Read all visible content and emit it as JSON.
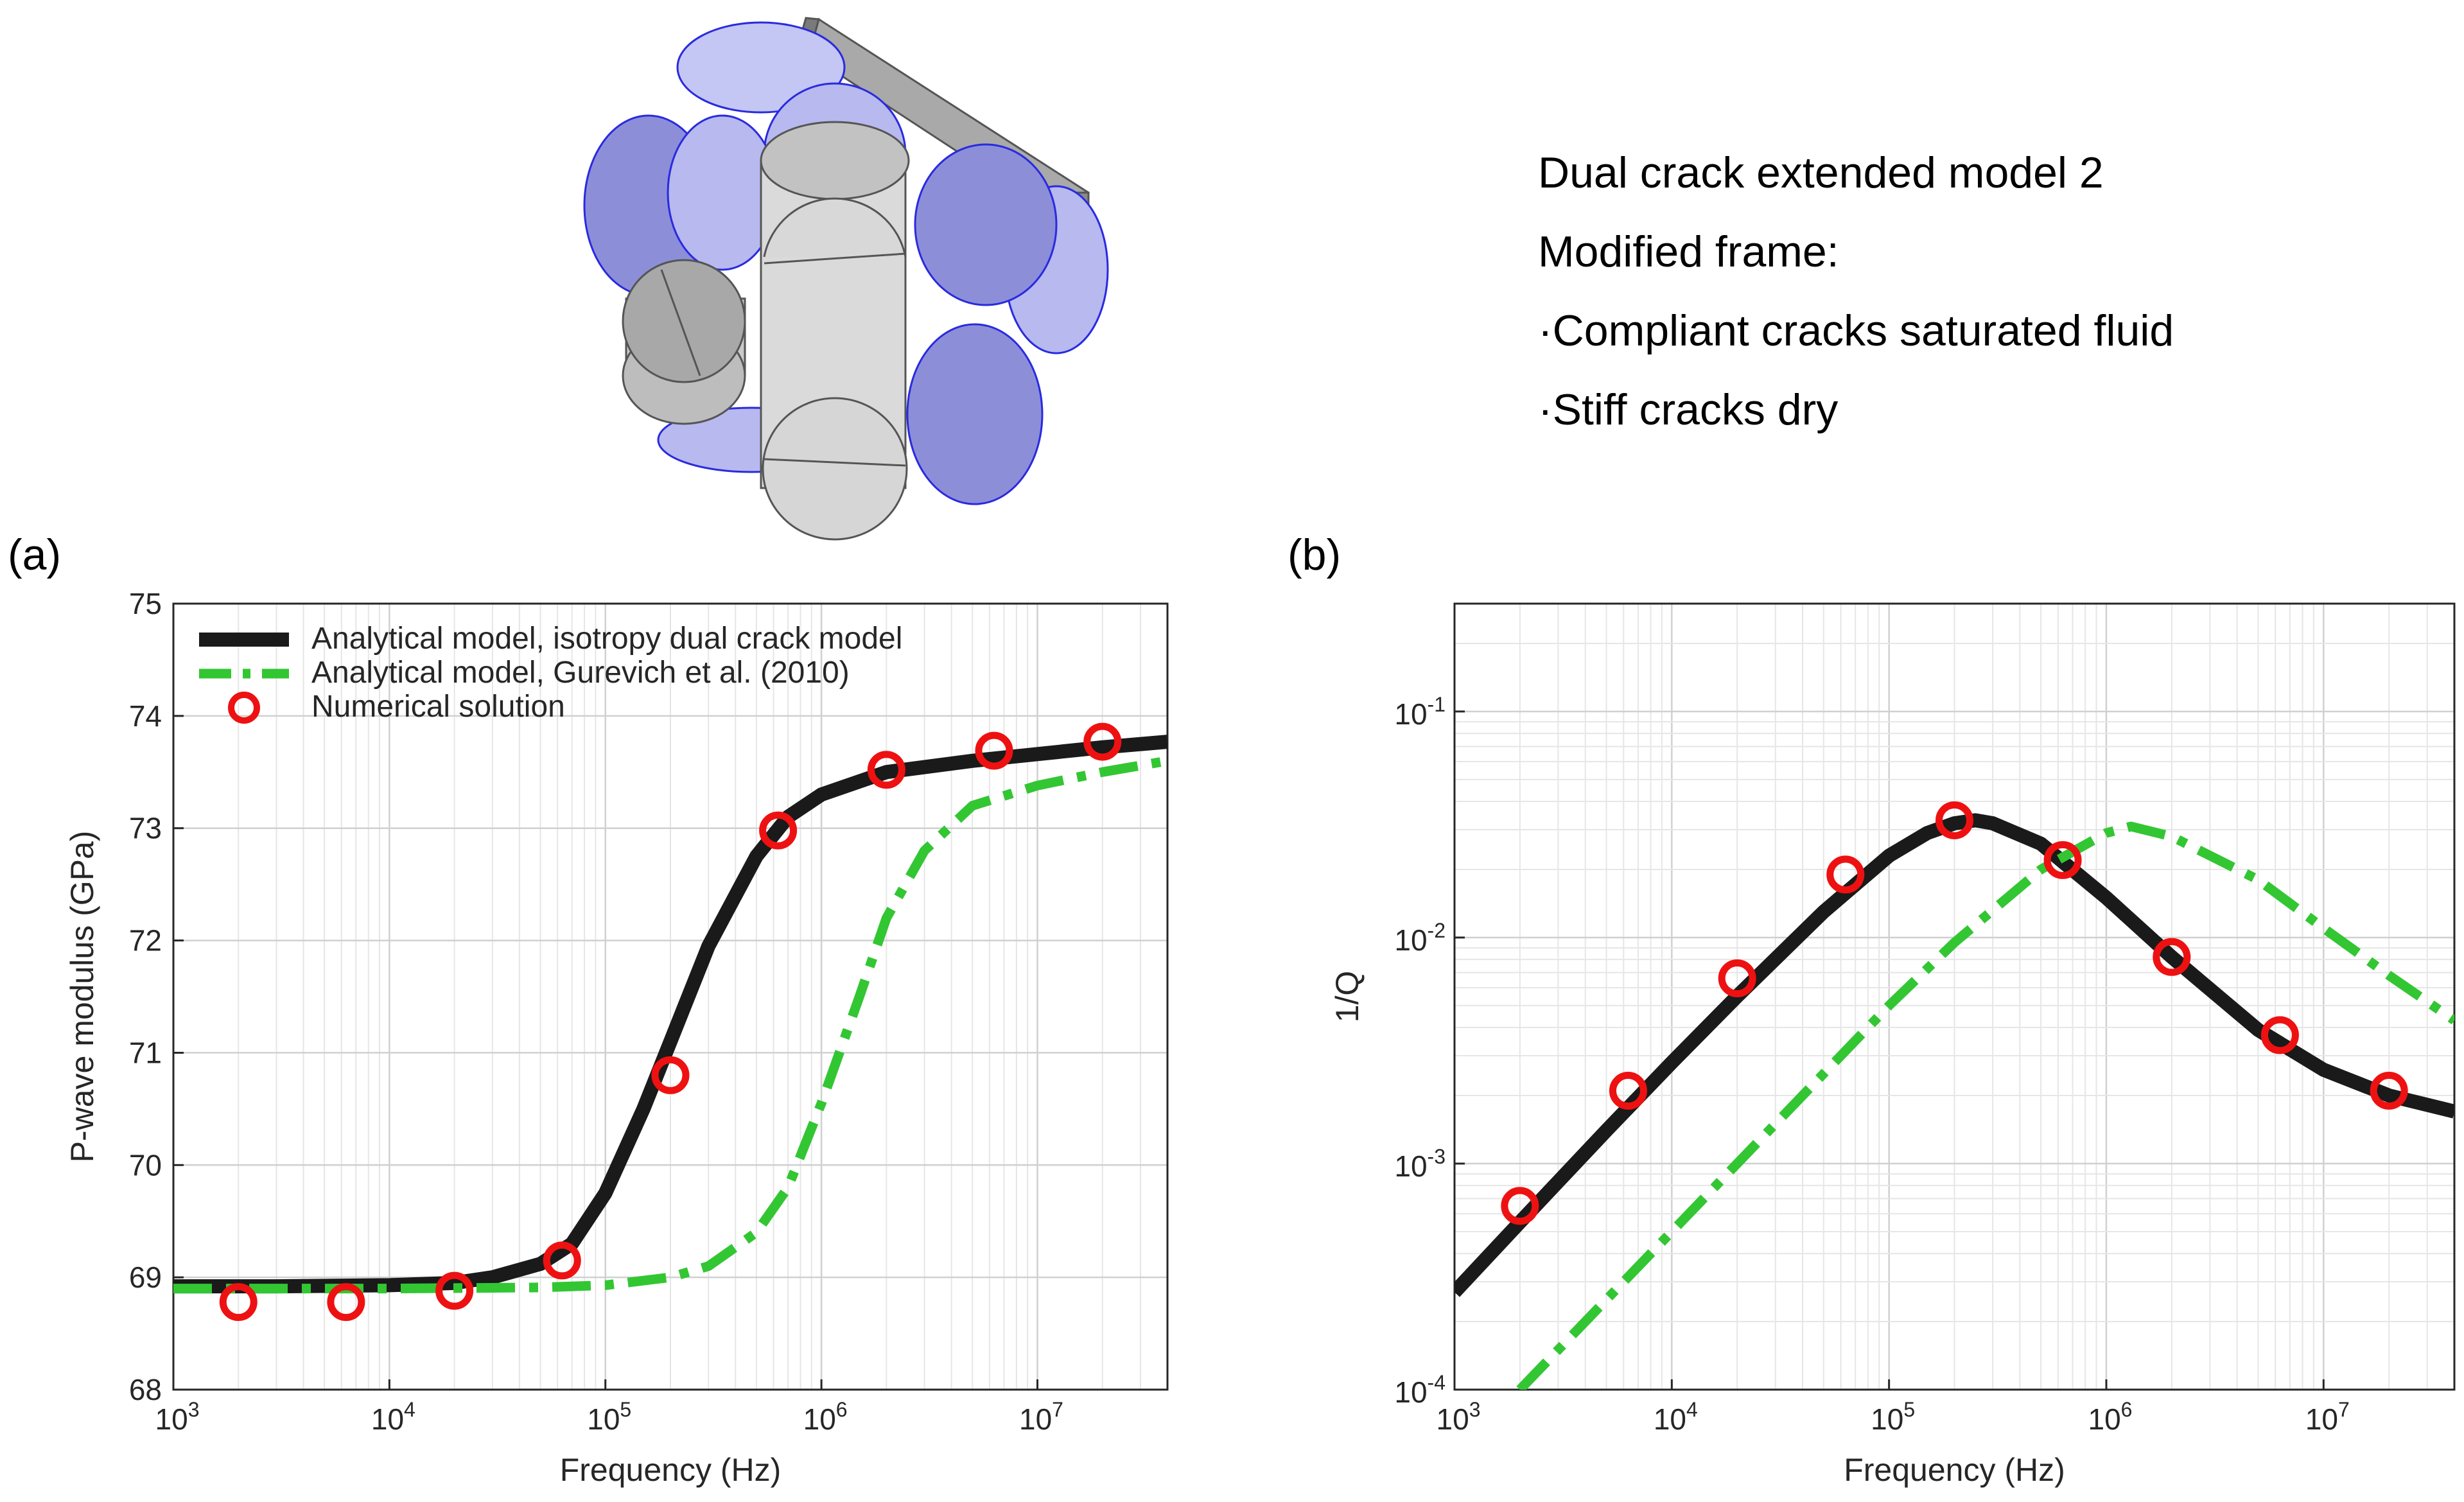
{
  "header": {
    "model_title": "Dual crack extended model 2",
    "frame_heading": "Modified frame:",
    "bullet_1": "·Compliant cracks saturated fluid",
    "bullet_2": "·Stiff cracks dry"
  },
  "colors": {
    "analytical_isotropy": "#1a1a1a",
    "analytical_gurevich": "#33c633",
    "numerical_marker": "#ee1111",
    "grid": "#dcdcdc",
    "disk_fill": "#aab0ee",
    "disk_stroke": "#2a2ae0",
    "cylinder_fill": "#d6d6d6"
  },
  "chart_data": [
    {
      "panel_label": "(a)",
      "type": "line",
      "x_scale": "log",
      "y_scale": "linear",
      "xlabel": "Frequency (Hz)",
      "ylabel": "P-wave modulus (GPa)",
      "xlim": [
        1000,
        40000000
      ],
      "ylim": [
        68,
        75
      ],
      "x_tick_exponents": [
        3,
        4,
        5,
        6,
        7
      ],
      "y_ticks": [
        68,
        69,
        70,
        71,
        72,
        73,
        74,
        75
      ],
      "grid": true,
      "legend_position": "top-left",
      "legend": [
        "Analytical model, isotropy dual crack model",
        "Analytical model, Gurevich et al. (2010)",
        "Numerical solution"
      ],
      "series": [
        {
          "name": "Analytical model, isotropy dual crack model",
          "style": "solid",
          "x": [
            1000,
            3000,
            10000,
            20000,
            30000,
            50000,
            70000,
            100000,
            150000,
            200000,
            300000,
            500000,
            700000,
            1000000,
            2000000,
            5000000,
            10000000,
            20000000,
            40000000
          ],
          "y": [
            68.92,
            68.92,
            68.93,
            68.95,
            69.0,
            69.12,
            69.3,
            69.75,
            70.5,
            71.1,
            71.95,
            72.75,
            73.1,
            73.3,
            73.5,
            73.6,
            73.66,
            73.72,
            73.77
          ]
        },
        {
          "name": "Analytical model, Gurevich et al. (2010)",
          "style": "dash-dot",
          "x": [
            1000,
            10000,
            50000,
            100000,
            200000,
            300000,
            500000,
            700000,
            1000000,
            1500000,
            2000000,
            3000000,
            5000000,
            10000000,
            20000000,
            40000000
          ],
          "y": [
            68.9,
            68.9,
            68.91,
            68.93,
            69.0,
            69.1,
            69.4,
            69.8,
            70.55,
            71.5,
            72.2,
            72.8,
            73.2,
            73.38,
            73.5,
            73.6
          ]
        },
        {
          "name": "Numerical solution",
          "style": "marker",
          "x": [
            2000,
            6300,
            20000,
            63000,
            200000,
            630000,
            2000000,
            6300000,
            20000000
          ],
          "y": [
            68.78,
            68.78,
            68.88,
            69.15,
            70.8,
            72.98,
            73.52,
            73.69,
            73.77
          ]
        }
      ]
    },
    {
      "panel_label": "(b)",
      "type": "line",
      "x_scale": "log",
      "y_scale": "log",
      "xlabel": "Frequency (Hz)",
      "ylabel": "1/Q",
      "xlim": [
        1000,
        40000000
      ],
      "ylim": [
        0.0001,
        0.3
      ],
      "x_tick_exponents": [
        3,
        4,
        5,
        6,
        7
      ],
      "y_tick_exponents": [
        -4,
        -3,
        -2,
        -1
      ],
      "grid": true,
      "series": [
        {
          "name": "Analytical model, isotropy dual crack model",
          "style": "solid",
          "x": [
            1000,
            2000,
            5000,
            10000,
            20000,
            50000,
            100000,
            150000,
            200000,
            250000,
            300000,
            500000,
            1000000,
            2000000,
            5000000,
            10000000,
            20000000,
            40000000
          ],
          "y": [
            0.00027,
            0.00055,
            0.0014,
            0.0028,
            0.0055,
            0.013,
            0.023,
            0.029,
            0.032,
            0.033,
            0.032,
            0.026,
            0.015,
            0.0082,
            0.0039,
            0.0026,
            0.002,
            0.0017
          ]
        },
        {
          "name": "Analytical model, Gurevich et al. (2010)",
          "style": "dash-dot",
          "x": [
            2000,
            5000,
            10000,
            20000,
            50000,
            100000,
            200000,
            500000,
            1000000,
            1300000,
            2000000,
            5000000,
            10000000,
            20000000,
            40000000
          ],
          "y": [
            0.0001,
            0.00025,
            0.0005,
            0.001,
            0.0025,
            0.005,
            0.0095,
            0.02,
            0.029,
            0.031,
            0.028,
            0.018,
            0.011,
            0.0068,
            0.0043
          ]
        },
        {
          "name": "Numerical solution",
          "style": "marker",
          "x": [
            2000,
            6300,
            20000,
            63000,
            200000,
            630000,
            2000000,
            6300000,
            20000000
          ],
          "y": [
            0.00065,
            0.0021,
            0.0066,
            0.019,
            0.033,
            0.022,
            0.0082,
            0.0037,
            0.0021
          ]
        }
      ]
    }
  ]
}
